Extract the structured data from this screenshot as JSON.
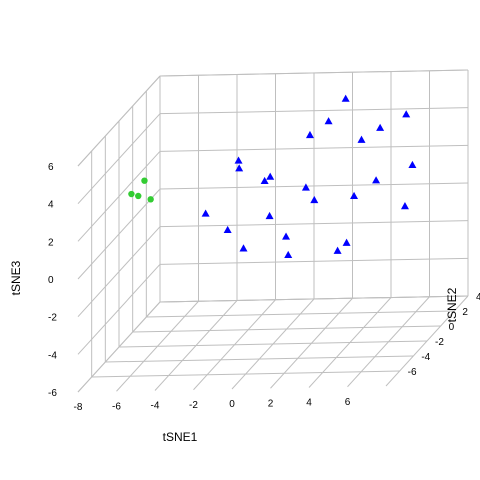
{
  "chart_data": {
    "type": "scatter",
    "projection": "3d",
    "grid": true,
    "xlabel": "tSNE1",
    "ylabel": "tSNE2",
    "zlabel": "tSNE3",
    "xlim": [
      -8,
      8
    ],
    "ylim": [
      -8,
      4
    ],
    "zlim": [
      -6,
      6
    ],
    "x_ticks": [
      "-8",
      "-6",
      "-4",
      "-2",
      "0",
      "2",
      "4",
      "6"
    ],
    "y_ticks": [
      "-6",
      "-4",
      "-2",
      "0",
      "2",
      "4"
    ],
    "z_ticks": [
      "-6",
      "-4",
      "-2",
      "0",
      "2",
      "4",
      "6"
    ],
    "series": [
      {
        "marker": "triangle",
        "color": "#0000ff",
        "points": [
          [
            4.5,
            1.0,
            4.2
          ],
          [
            2.0,
            0.5,
            4.8
          ],
          [
            -0.5,
            -1.0,
            2.5
          ],
          [
            -3.5,
            -2.0,
            1.0
          ],
          [
            -1.5,
            1.0,
            1.5
          ],
          [
            0.5,
            2.0,
            3.5
          ],
          [
            3.0,
            2.5,
            3.0
          ],
          [
            6.0,
            1.5,
            2.0
          ],
          [
            5.0,
            -1.0,
            2.2
          ],
          [
            2.5,
            -3.0,
            2.0
          ],
          [
            0.0,
            -2.5,
            1.0
          ],
          [
            -2.0,
            -3.0,
            0.5
          ],
          [
            1.0,
            0.0,
            1.5
          ],
          [
            3.5,
            0.0,
            1.0
          ],
          [
            6.5,
            -1.0,
            0.8
          ],
          [
            4.0,
            -2.5,
            -0.5
          ],
          [
            1.5,
            -4.0,
            -0.5
          ],
          [
            -1.0,
            -3.5,
            -0.3
          ],
          [
            0.5,
            -1.5,
            -0.5
          ],
          [
            3.0,
            -1.0,
            -1.5
          ],
          [
            2.0,
            3.0,
            5.0
          ],
          [
            -2.5,
            0.0,
            3.0
          ],
          [
            -3.0,
            1.5,
            2.0
          ],
          [
            5.5,
            2.0,
            4.5
          ]
        ]
      },
      {
        "marker": "circle",
        "color": "#33cc33",
        "points": [
          [
            -7.0,
            -3.0,
            2.5
          ],
          [
            -6.5,
            -2.5,
            3.0
          ],
          [
            -7.0,
            -2.0,
            2.0
          ],
          [
            -6.0,
            -3.0,
            2.2
          ]
        ]
      }
    ]
  }
}
